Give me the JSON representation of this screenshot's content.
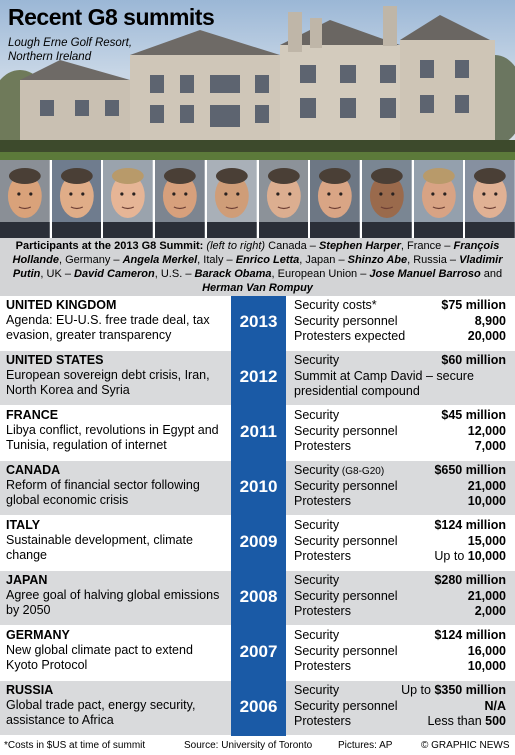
{
  "header": {
    "title": "Recent G8 summits",
    "subtitle": "Lough Erne Golf Resort,\nNorthern Ireland"
  },
  "faces": [
    "Stephen Harper",
    "François Hollande",
    "Angela Merkel",
    "Enrico Letta",
    "Shinzo Abe",
    "Vladimir Putin",
    "David Cameron",
    "Barack Obama",
    "Jose Manuel Barroso",
    "Herman Van Rompuy"
  ],
  "caption": {
    "lead": "Participants at the 2013 G8 Summit:",
    "order": "(left to right)",
    "entries": [
      {
        "country": "Canada",
        "leader": "Stephen Harper"
      },
      {
        "country": "France",
        "leader": "François Hollande"
      },
      {
        "country": "Germany",
        "leader": "Angela Merkel"
      },
      {
        "country": "Italy",
        "leader": "Enrico Letta"
      },
      {
        "country": "Japan",
        "leader": "Shinzo Abe"
      },
      {
        "country": "Russia",
        "leader": "Vladimir Putin"
      },
      {
        "country": "UK",
        "leader": "David Cameron"
      },
      {
        "country": "U.S.",
        "leader": "Barack Obama"
      },
      {
        "country": "European Union",
        "leader": "Jose Manuel Barroso"
      },
      {
        "country": "",
        "leader": "Herman Van Rompuy"
      }
    ]
  },
  "chart_data": {
    "type": "table",
    "rows": [
      {
        "country": "UNITED KINGDOM",
        "year": "2013",
        "agenda": "Agenda: EU-U.S. free trade deal, tax evasion, greater transparency",
        "stats": [
          {
            "label": "Security costs*",
            "value": "$75 million",
            "bold": true
          },
          {
            "label": "Security personnel",
            "value": "8,900",
            "bold": true
          },
          {
            "label": "Protesters expected",
            "value": "20,000",
            "bold": true
          }
        ]
      },
      {
        "country": "UNITED STATES",
        "year": "2012",
        "agenda": "European sovereign debt crisis, Iran, North Korea and Syria",
        "stats": [
          {
            "label": "Security",
            "value": "$60 million",
            "bold": true
          },
          {
            "label": "Summit at Camp David – secure presidential compound",
            "value": "",
            "bold": false
          }
        ]
      },
      {
        "country": "FRANCE",
        "year": "2011",
        "agenda": "Libya conflict, revolutions in Egypt and Tunisia, regulation of internet",
        "stats": [
          {
            "label": "Security",
            "value": "$45 million",
            "bold": true
          },
          {
            "label": "Security personnel",
            "value": "12,000",
            "bold": true
          },
          {
            "label": "Protesters",
            "value": "7,000",
            "bold": true
          }
        ]
      },
      {
        "country": "CANADA",
        "year": "2010",
        "agenda": "Reform of financial sector following global economic crisis",
        "stats": [
          {
            "label": "Security",
            "note": "(G8-G20)",
            "value": "$650 million",
            "bold": true
          },
          {
            "label": "Security personnel",
            "value": "21,000",
            "bold": true
          },
          {
            "label": "Protesters",
            "value": "10,000",
            "bold": true
          }
        ]
      },
      {
        "country": "ITALY",
        "year": "2009",
        "agenda": "Sustainable development, climate change",
        "stats": [
          {
            "label": "Security",
            "value": "$124 million",
            "bold": true
          },
          {
            "label": "Security personnel",
            "value": "15,000",
            "bold": true
          },
          {
            "label": "Protesters",
            "prefix": "Up to",
            "value": "10,000",
            "bold": true
          }
        ]
      },
      {
        "country": "JAPAN",
        "year": "2008",
        "agenda": "Agree goal of halving global emissions by 2050",
        "stats": [
          {
            "label": "Security",
            "value": "$280 million",
            "bold": true
          },
          {
            "label": "Security personnel",
            "value": "21,000",
            "bold": true
          },
          {
            "label": "Protesters",
            "value": "2,000",
            "bold": true
          }
        ]
      },
      {
        "country": "GERMANY",
        "year": "2007",
        "agenda": "New global climate pact to extend Kyoto Protocol",
        "stats": [
          {
            "label": "Security",
            "value": "$124 million",
            "bold": true
          },
          {
            "label": "Security personnel",
            "value": "16,000",
            "bold": true
          },
          {
            "label": "Protesters",
            "value": "10,000",
            "bold": true
          }
        ]
      },
      {
        "country": "RUSSIA",
        "year": "2006",
        "agenda": "Global trade pact, energy security, assistance to Africa",
        "stats": [
          {
            "label": "Security",
            "prefix": "Up to",
            "value": "$350 million",
            "bold": true
          },
          {
            "label": "Security personnel",
            "value": "N/A",
            "bold": true
          },
          {
            "label": "Protesters",
            "prefix": "Less than",
            "value": "500",
            "bold": true
          }
        ]
      }
    ]
  },
  "footer": {
    "note": "*Costs in $US at time of summit",
    "source": "Source: University of Toronto",
    "pictures": "Pictures: AP",
    "credit": "© GRAPHIC NEWS"
  },
  "colors": {
    "year_box": "#1a5aa6",
    "row_alt": "#d9dadc",
    "caption_bg": "#d3d4d6"
  }
}
